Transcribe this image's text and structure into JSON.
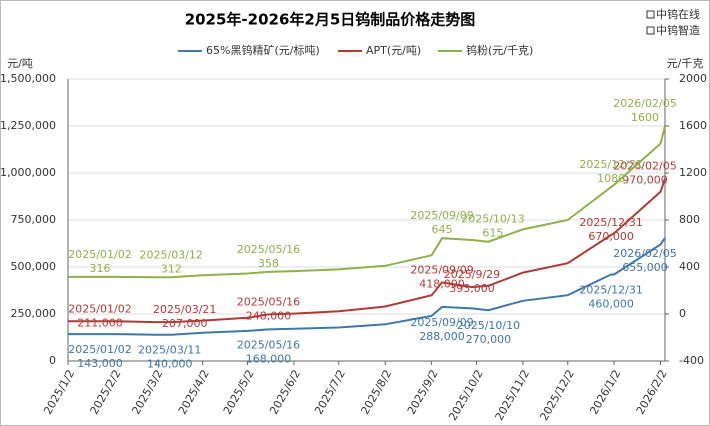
{
  "chart_data": {
    "type": "line",
    "title": "2025年-2026年2月5日钨制品价格走势图",
    "logos": [
      "中钨在线",
      "中钨智造"
    ],
    "ylabel": "元/吨",
    "y2label": "元/千克",
    "xlim": [
      "2025/1/2",
      "2026/2/5"
    ],
    "xticks": [
      "2025/1/2",
      "2025/2/2",
      "2025/3/2",
      "2025/4/2",
      "2025/5/2",
      "2025/6/2",
      "2025/7/2",
      "2025/8/2",
      "2025/9/2",
      "2025/10/2",
      "2025/11/2",
      "2025/12/2",
      "2026/1/2",
      "2026/2/2"
    ],
    "ylim": [
      0,
      1500000
    ],
    "yticks": [
      0,
      {
        "value": 250000,
        "label": "250,000"
      },
      {
        "value": 500000,
        "label": "500,000"
      },
      {
        "value": 750000,
        "label": "750,000"
      },
      {
        "value": 1000000,
        "label": "1,000,000"
      },
      {
        "value": 1250000,
        "label": "1,250,000"
      },
      {
        "value": 1500000,
        "label": "1,500,000"
      }
    ],
    "y2lim": [
      -400,
      2000
    ],
    "y2ticks": [
      -400,
      0,
      400,
      800,
      1200,
      1600,
      2000
    ],
    "grid": true,
    "x": [
      "2025/1/2",
      "2025/2/2",
      "2025/3/2",
      "2025/3/12",
      "2025/4/2",
      "2025/5/2",
      "2025/5/16",
      "2025/6/2",
      "2025/7/2",
      "2025/8/2",
      "2025/9/2",
      "2025/9/9",
      "2025/9/29",
      "2025/10/10",
      "2025/11/2",
      "2025/12/2",
      "2025/12/31",
      "2026/1/2",
      "2026/2/2",
      "2026/2/5"
    ],
    "series": [
      {
        "name": "65%黑钨精矿(元/标吨)",
        "color": "#3f77a8",
        "values": [
          143000,
          143000,
          140000,
          140000,
          150000,
          160000,
          168000,
          172000,
          178000,
          195000,
          240000,
          288000,
          280000,
          270000,
          320000,
          350000,
          460000,
          460000,
          620000,
          655000
        ],
        "annotations": [
          {
            "date": "2025/01/02",
            "value": 143000,
            "label": "143,000"
          },
          {
            "date": "2025/03/11",
            "value": 140000,
            "label": "140,000"
          },
          {
            "date": "2025/05/16",
            "value": 168000,
            "label": "168,000"
          },
          {
            "date": "2025/09/09",
            "value": 288000,
            "label": "288,000"
          },
          {
            "date": "2025/10/10",
            "value": 270000,
            "label": "270,000"
          },
          {
            "date": "2025/12/31",
            "value": 460000,
            "label": "460,000"
          },
          {
            "date": "2026/02/05",
            "value": 655000,
            "label": "655,000"
          }
        ]
      },
      {
        "name": "APT(元/吨)",
        "color": "#b03a36",
        "values": [
          211000,
          211000,
          207000,
          207000,
          215000,
          230000,
          248000,
          252000,
          265000,
          290000,
          350000,
          418000,
          393000,
          400000,
          470000,
          520000,
          670000,
          680000,
          900000,
          970000
        ],
        "annotations": [
          {
            "date": "2025/01/02",
            "value": 211000,
            "label": "211,000"
          },
          {
            "date": "2025/03/21",
            "value": 207000,
            "label": "207,000"
          },
          {
            "date": "2025/05/16",
            "value": 248000,
            "label": "248,000"
          },
          {
            "date": "2025/09/09",
            "value": 418000,
            "label": "418,000"
          },
          {
            "date": "2025/9/29",
            "value": 393000,
            "label": "393,000"
          },
          {
            "date": "2025/12/31",
            "value": 670000,
            "label": "670,000"
          },
          {
            "date": "2026/02/05",
            "value": 970000,
            "label": "970,000"
          }
        ]
      },
      {
        "name": "钨粉(元/千克)",
        "color": "#8fb04a",
        "axis": "y2",
        "values": [
          316,
          316,
          312,
          312,
          330,
          345,
          358,
          365,
          380,
          410,
          500,
          645,
          630,
          615,
          720,
          800,
          1080,
          1100,
          1450,
          1600
        ],
        "annotations": [
          {
            "date": "2025/01/02",
            "value": 316
          },
          {
            "date": "2025/03/12",
            "value": 312
          },
          {
            "date": "2025/05/16",
            "value": 358
          },
          {
            "date": "2025/09/09",
            "value": 645
          },
          {
            "date": "2025/10/13",
            "value": 615
          },
          {
            "date": "2025/12/31",
            "value": 1080
          },
          {
            "date": "2026/02/05",
            "value": 1600
          }
        ]
      }
    ]
  }
}
